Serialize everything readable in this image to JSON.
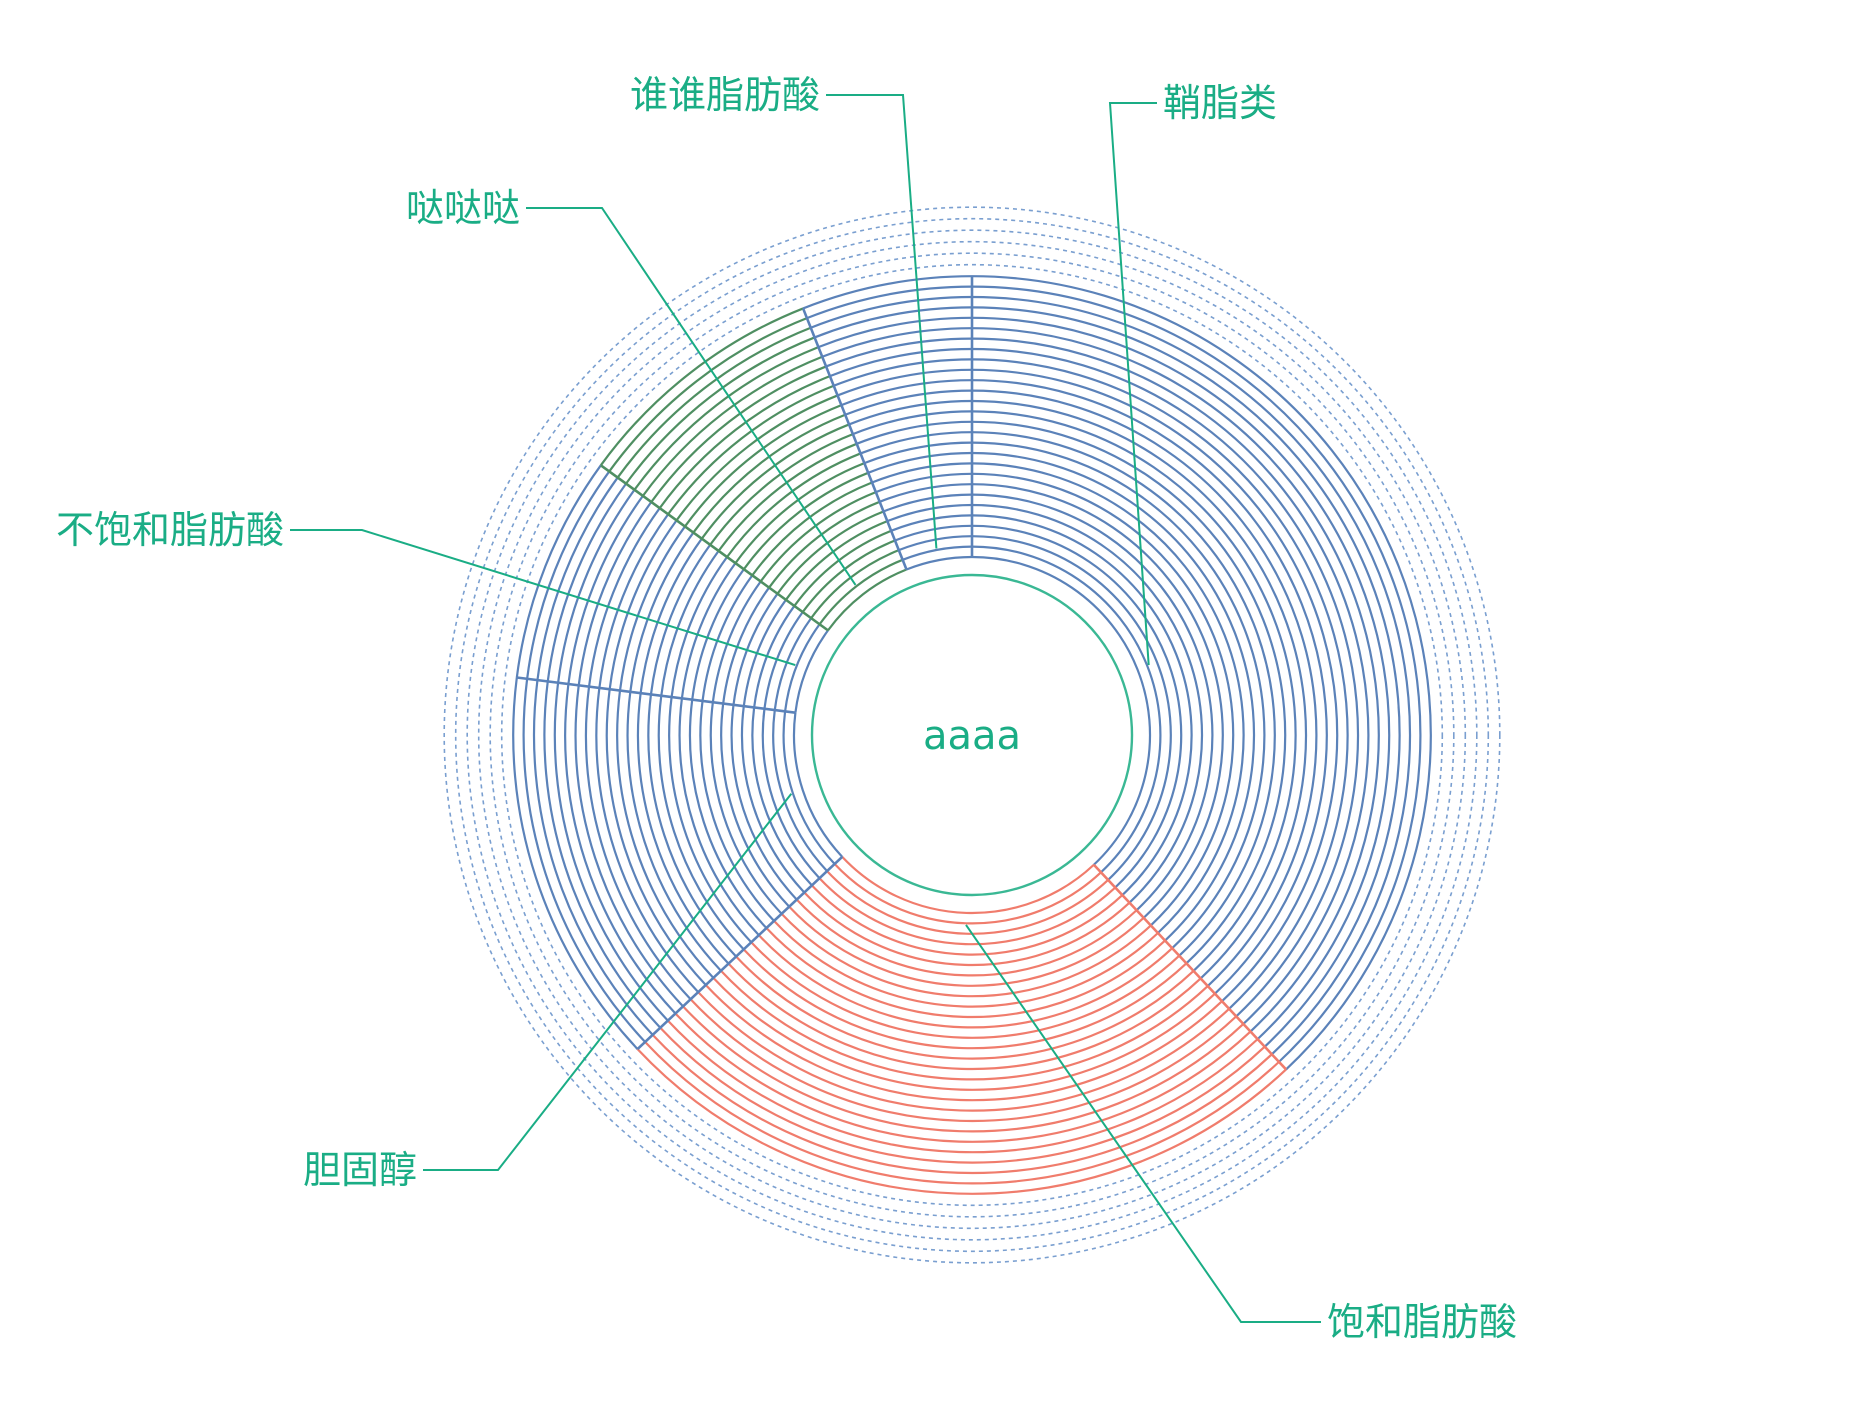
{
  "chart_data": {
    "type": "pie",
    "title": "",
    "center_label": "aaaa",
    "slices": [
      {
        "name": "鞘脂类",
        "value": 38,
        "color": "#5b82b9"
      },
      {
        "name": "饱和脂肪酸",
        "value": 25,
        "color": "#f07c6c"
      },
      {
        "name": "胆固醇",
        "value": 14,
        "color": "#5b82b9"
      },
      {
        "name": "不饱和脂肪酸",
        "value": 8,
        "color": "#5b82b9"
      },
      {
        "name": "哒哒哒",
        "value": 9,
        "color": "#4f8f62"
      },
      {
        "name": "谁谁脂肪酸",
        "value": 6,
        "color": "#5b82b9"
      }
    ],
    "colors": {
      "label": "#1aad85",
      "leader_line": "#1aad85",
      "center_ring": "#3ab894",
      "dashed_rings": "#7a9fd0"
    }
  }
}
